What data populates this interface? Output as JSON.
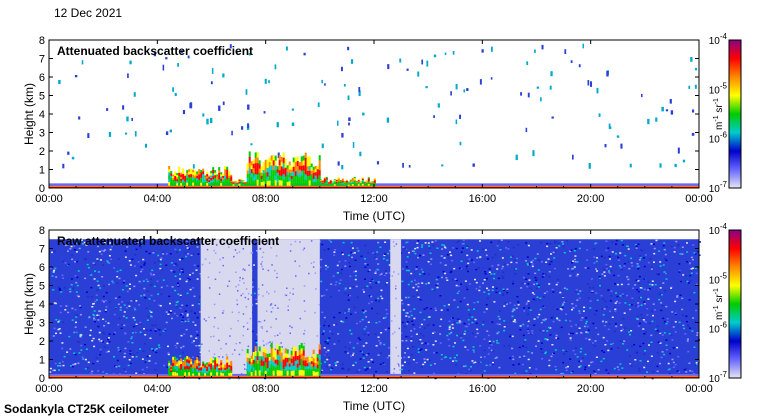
{
  "date_label": "12 Dec 2021",
  "instrument_label": "Sodankyla CT25K ceilometer",
  "colorscale": {
    "stops": [
      "#e6e6f2",
      "#6666ff",
      "#0000cc",
      "#00cccc",
      "#00cc00",
      "#ffff00",
      "#ff8800",
      "#ff0000",
      "#880088"
    ],
    "tick_labels": [
      [
        "10",
        "-7"
      ],
      [
        "10",
        "-6"
      ],
      [
        "10",
        "-5"
      ],
      [
        "10",
        "-4"
      ]
    ],
    "unit_label": [
      "m",
      "-1",
      " sr",
      "-1"
    ]
  },
  "chart_data": [
    {
      "type": "heatmap",
      "title": "Attenuated backscatter coefficient",
      "xlabel": "Time (UTC)",
      "ylabel": "Height (km)",
      "xlim": [
        "00:00",
        "24:00"
      ],
      "ylim": [
        0,
        8
      ],
      "x_tick_labels": [
        "00:00",
        "04:00",
        "08:00",
        "12:00",
        "16:00",
        "20:00",
        "00:00"
      ],
      "y_tick_labels": [
        "0",
        "1",
        "2",
        "3",
        "4",
        "5",
        "6",
        "7",
        "8"
      ],
      "color_scale": "log",
      "color_range": [
        "1e-7",
        "1e-4"
      ],
      "features": [
        {
          "kind": "surface-layer",
          "time_start": 0.0,
          "time_end": 24.0,
          "height_top_km": 0.25
        },
        {
          "kind": "cloud",
          "time_start": 4.4,
          "time_end": 6.7,
          "height_top_km": 1.2
        },
        {
          "kind": "cloud",
          "time_start": 6.7,
          "time_end": 7.3,
          "height_top_km": 0.5
        },
        {
          "kind": "cloud",
          "time_start": 7.3,
          "time_end": 10.0,
          "height_top_km": 2.0
        },
        {
          "kind": "cloud",
          "time_start": 10.0,
          "time_end": 12.0,
          "height_top_km": 0.6
        }
      ]
    },
    {
      "type": "heatmap",
      "title": "Raw attenuated backscatter coefficient",
      "xlabel": "Time (UTC)",
      "ylabel": "Height (km)",
      "xlim": [
        "00:00",
        "24:00"
      ],
      "ylim": [
        0,
        8
      ],
      "x_tick_labels": [
        "00:00",
        "04:00",
        "08:00",
        "12:00",
        "16:00",
        "20:00",
        "00:00"
      ],
      "y_tick_labels": [
        "0",
        "1",
        "2",
        "3",
        "4",
        "5",
        "6",
        "7",
        "8"
      ],
      "color_scale": "log",
      "color_range": [
        "1e-7",
        "1e-4"
      ],
      "data_top_km": 7.5,
      "features": [
        {
          "kind": "noise-field",
          "time_start": 0.0,
          "time_end": 24.0,
          "height_top_km": 7.5
        },
        {
          "kind": "quiet-gap",
          "time_start": 5.6,
          "time_end": 7.5
        },
        {
          "kind": "quiet-gap",
          "time_start": 7.7,
          "time_end": 10.0
        },
        {
          "kind": "quiet-gap",
          "time_start": 12.6,
          "time_end": 13.0
        },
        {
          "kind": "cloud",
          "time_start": 4.4,
          "time_end": 6.7,
          "height_top_km": 1.2
        },
        {
          "kind": "cloud",
          "time_start": 7.3,
          "time_end": 10.0,
          "height_top_km": 1.9
        }
      ]
    }
  ]
}
